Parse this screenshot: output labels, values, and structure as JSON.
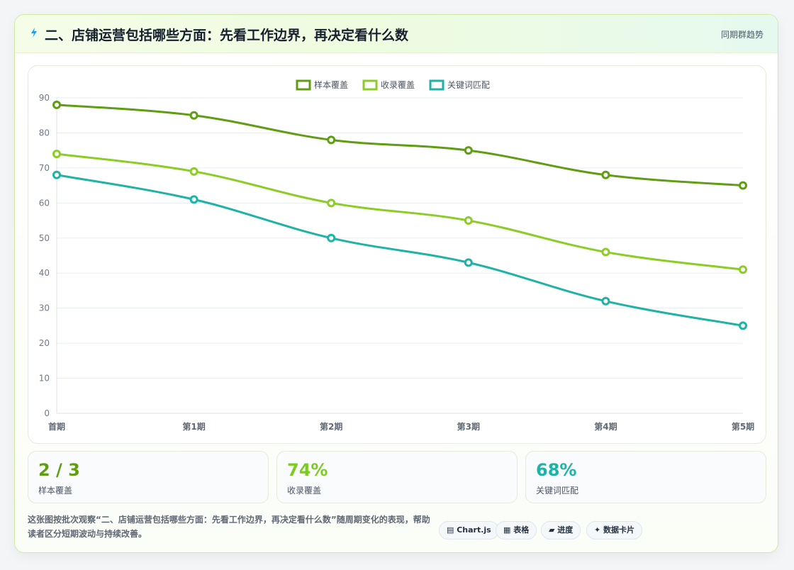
{
  "header": {
    "title": "二、店铺运营包括哪些方面：先看工作边界，再决定看什么数",
    "trend_link": "同期群趋势",
    "icon": "lightning-icon"
  },
  "chart_data": {
    "type": "line",
    "title": "",
    "xlabel": "",
    "ylabel": "",
    "categories": [
      "首期",
      "第1期",
      "第2期",
      "第3期",
      "第4期",
      "第5期"
    ],
    "y_ticks": [
      "0",
      "10",
      "20",
      "30",
      "40",
      "50",
      "60",
      "70",
      "80",
      "90"
    ],
    "ylim": [
      0,
      90
    ],
    "grid": true,
    "legend": "top-center",
    "series": [
      {
        "name": "样本覆盖",
        "values": [
          88,
          85,
          78,
          75,
          68,
          65
        ],
        "color": "#5f9e12"
      },
      {
        "name": "收录覆盖",
        "values": [
          74,
          69,
          60,
          55,
          46,
          41
        ],
        "color": "#8ccd25"
      },
      {
        "name": "关键词匹配",
        "values": [
          68,
          61,
          50,
          43,
          32,
          25
        ],
        "color": "#1fb2a6"
      }
    ]
  },
  "stats": [
    {
      "value": "2 / 3",
      "label": "样本覆盖",
      "color": "#5f9e12"
    },
    {
      "value": "74%",
      "label": "收录覆盖",
      "color": "#7ccb1f"
    },
    {
      "value": "68%",
      "label": "关键词匹配",
      "color": "#1fb2a6"
    }
  ],
  "footer": {
    "description": "这张图按批次观察“二、店铺运营包括哪些方面：先看工作边界，再决定看什么数”随周期变化的表现，帮助读者区分短期波动与持续改善。",
    "tags": [
      {
        "icon": "chart-icon",
        "label": "▤ Chart.js"
      },
      {
        "icon": "table-icon",
        "label": "▦ 表格"
      },
      {
        "icon": "progress-icon",
        "label": "▰ 进度"
      },
      {
        "icon": "data-card-icon",
        "label": "✦ 数据卡片"
      }
    ]
  }
}
